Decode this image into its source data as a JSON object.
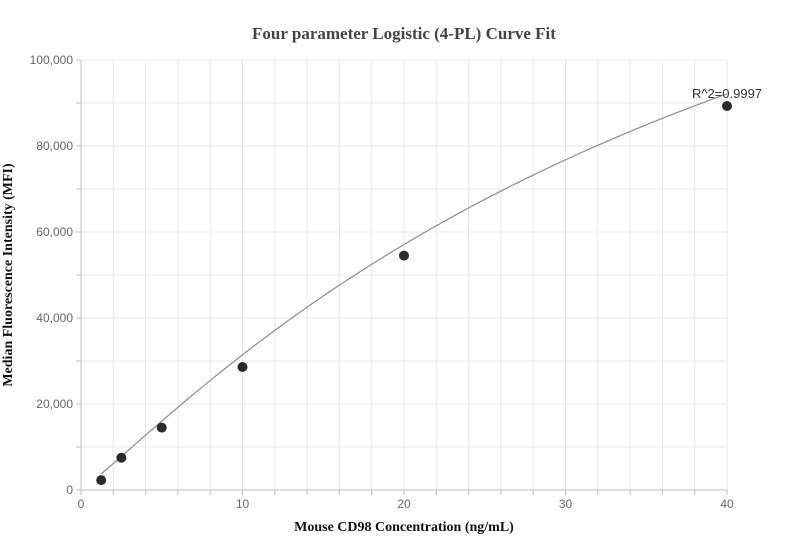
{
  "chart_data": {
    "type": "scatter",
    "title": "Four parameter Logistic (4-PL) Curve Fit",
    "xlabel": "Mouse CD98 Concentration (ng/mL)",
    "ylabel": "Median Fluorescence Intensity (MFI)",
    "xlim": [
      0,
      40
    ],
    "ylim": [
      0,
      100000
    ],
    "x_ticks": [
      0,
      10,
      20,
      30,
      40
    ],
    "x_tick_labels": [
      "0",
      "10",
      "20",
      "30",
      "40"
    ],
    "x_minor_step": 2,
    "y_ticks": [
      0,
      20000,
      40000,
      60000,
      80000,
      100000
    ],
    "y_tick_labels": [
      "0",
      "20,000",
      "40,000",
      "60,000",
      "80,000",
      "100,000"
    ],
    "y_minor_step": 10000,
    "grid": true,
    "points": [
      {
        "x": 1.25,
        "y": 2300
      },
      {
        "x": 2.5,
        "y": 7500
      },
      {
        "x": 5,
        "y": 14500
      },
      {
        "x": 10,
        "y": 28600
      },
      {
        "x": 20,
        "y": 54500
      },
      {
        "x": 40,
        "y": 89300
      }
    ],
    "fit_curve": {
      "model": "4PL",
      "A": 0,
      "B": 1.1,
      "C": 45.77,
      "D": 199000
    },
    "annotation": {
      "text": "R^2=0.9997",
      "x": 40,
      "y": 89300
    },
    "colors": {
      "point": "#2b2b2b",
      "curve": "#8c8c8c",
      "grid": "#e6e6f0",
      "axis": "#bfbfbf",
      "tick_text": "#666666",
      "title_text": "#444444",
      "label_text": "#111111"
    }
  }
}
